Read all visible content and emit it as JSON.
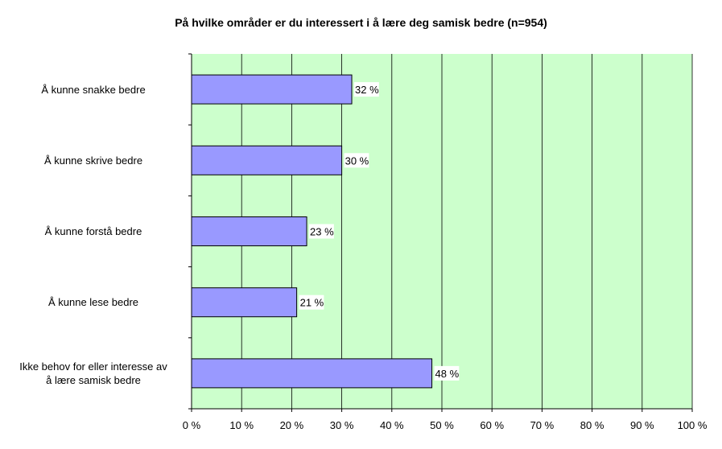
{
  "chart_data": {
    "type": "bar",
    "orientation": "horizontal",
    "title": "På hvilke områder er du interessert i å lære deg samisk bedre (n=954)",
    "categories": [
      "Å kunne snakke bedre",
      "Å kunne skrive bedre",
      "Å kunne forstå bedre",
      "Å kunne lese bedre",
      "Ikke behov for eller interesse av å lære samisk bedre"
    ],
    "category_lines": [
      [
        "Å kunne snakke bedre"
      ],
      [
        "Å kunne skrive bedre"
      ],
      [
        "Å kunne forstå bedre"
      ],
      [
        "Å kunne lese bedre"
      ],
      [
        "Ikke behov for eller interesse av",
        "å lære samisk bedre"
      ]
    ],
    "values": [
      32,
      30,
      23,
      21,
      48
    ],
    "data_labels": [
      "32 %",
      "30 %",
      "23 %",
      "21 %",
      "48 %"
    ],
    "xlim": [
      0,
      100
    ],
    "xticks": [
      0,
      10,
      20,
      30,
      40,
      50,
      60,
      70,
      80,
      90,
      100
    ],
    "xtick_labels": [
      "0 %",
      "10 %",
      "20 %",
      "30 %",
      "40 %",
      "50 %",
      "60 %",
      "70 %",
      "80 %",
      "90 %",
      "100 %"
    ],
    "grid": true,
    "legend": false,
    "colors": {
      "bar_fill": "#9999ff",
      "bar_stroke": "#000000",
      "plot_background": "#ccffcc",
      "gridline": "#000000",
      "label_background": "#ffffff"
    }
  }
}
